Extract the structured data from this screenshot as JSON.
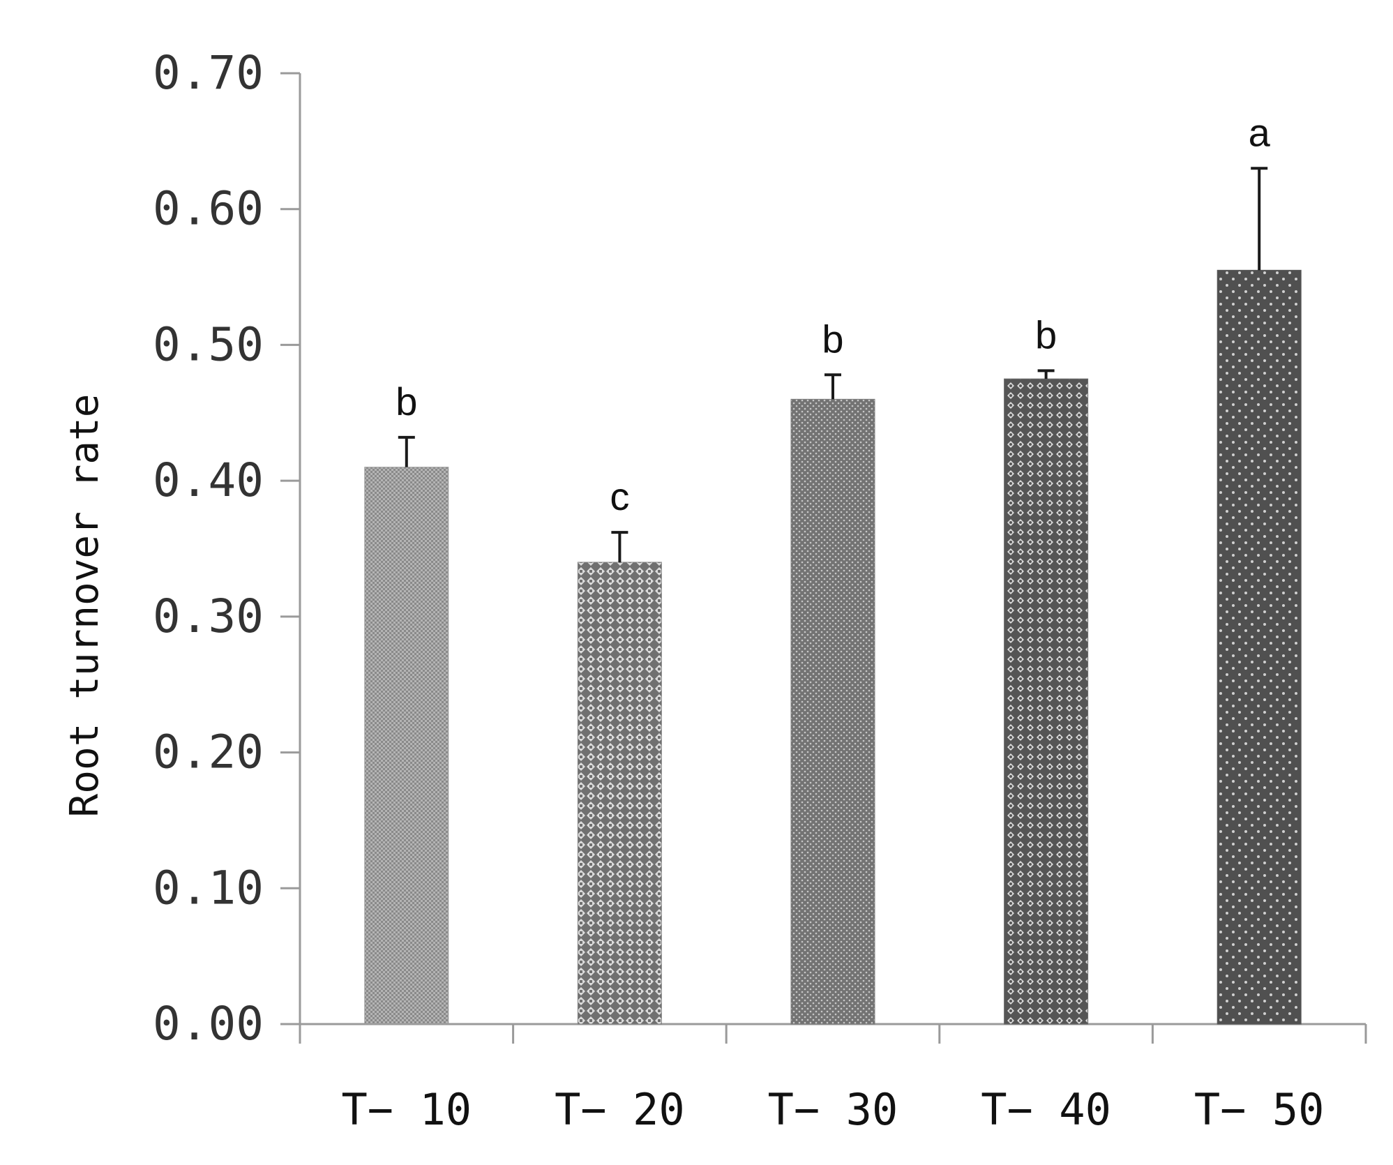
{
  "chart_data": {
    "type": "bar",
    "title": "",
    "xlabel": "",
    "ylabel": "Root turnover rate",
    "ylim": [
      0,
      0.7
    ],
    "yticks": [
      "0.00",
      "0.10",
      "0.20",
      "0.30",
      "0.40",
      "0.50",
      "0.60",
      "0.70"
    ],
    "grid": false,
    "categories": [
      "T− 10",
      "T− 20",
      "T− 30",
      "T− 40",
      "T− 50"
    ],
    "values": [
      0.41,
      0.34,
      0.46,
      0.475,
      0.555
    ],
    "errors": [
      0.022,
      0.022,
      0.018,
      0.006,
      0.075
    ],
    "significance_letters": [
      "b",
      "c",
      "b",
      "b",
      "a"
    ],
    "bar_colors": [
      "#9a9a9a",
      "#858585",
      "#7d7d7d",
      "#6a6a6a",
      "#595959"
    ]
  }
}
